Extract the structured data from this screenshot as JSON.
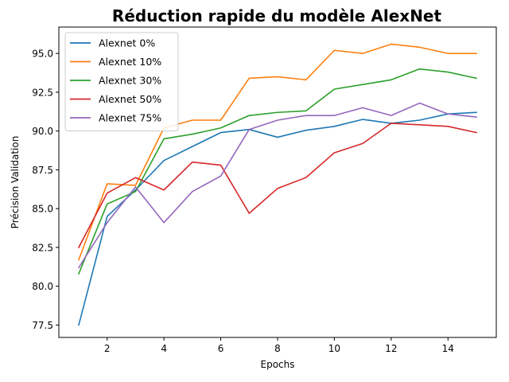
{
  "chart_data": {
    "type": "line",
    "title": "Réduction rapide du modèle AlexNet",
    "xlabel": "Epochs",
    "ylabel": "Précision Validation",
    "xlim": [
      0.3,
      15.7
    ],
    "ylim": [
      76.7,
      96.7
    ],
    "xticks": [
      2,
      4,
      6,
      8,
      10,
      12,
      14
    ],
    "yticks": [
      77.5,
      80.0,
      82.5,
      85.0,
      87.5,
      90.0,
      92.5,
      95.0
    ],
    "grid": false,
    "legend_position": "top-left",
    "x": [
      1,
      2,
      3,
      4,
      5,
      6,
      7,
      8,
      9,
      10,
      11,
      12,
      13,
      14,
      15
    ],
    "series": [
      {
        "name": "Alexnet 0%",
        "color": "#1f77b4",
        "values": [
          77.5,
          84.5,
          86.2,
          88.1,
          89.0,
          89.9,
          90.1,
          89.6,
          90.05,
          90.3,
          90.75,
          90.5,
          90.7,
          91.1,
          91.2
        ]
      },
      {
        "name": "Alexnet 10%",
        "color": "#ff7f0e",
        "values": [
          81.7,
          86.6,
          86.5,
          90.2,
          90.7,
          90.7,
          93.4,
          93.5,
          93.3,
          95.2,
          95.0,
          95.6,
          95.4,
          95.0,
          95.0
        ]
      },
      {
        "name": "Alexnet 30%",
        "color": "#2ca02c",
        "values": [
          80.8,
          85.3,
          86.1,
          89.5,
          89.8,
          90.2,
          91.0,
          91.2,
          91.3,
          92.7,
          93.0,
          93.3,
          94.0,
          93.8,
          93.4
        ]
      },
      {
        "name": "Alexnet 50%",
        "color": "#d62728",
        "values": [
          82.5,
          86.0,
          87.0,
          86.2,
          88.0,
          87.8,
          84.7,
          86.3,
          87.0,
          88.6,
          89.2,
          90.5,
          90.4,
          90.3,
          89.9
        ]
      },
      {
        "name": "Alexnet 75%",
        "color": "#9467bd",
        "values": [
          81.2,
          84.1,
          86.4,
          84.1,
          86.1,
          87.1,
          90.1,
          90.7,
          91.0,
          91.0,
          91.5,
          91.0,
          91.8,
          91.1,
          90.9
        ]
      }
    ]
  }
}
